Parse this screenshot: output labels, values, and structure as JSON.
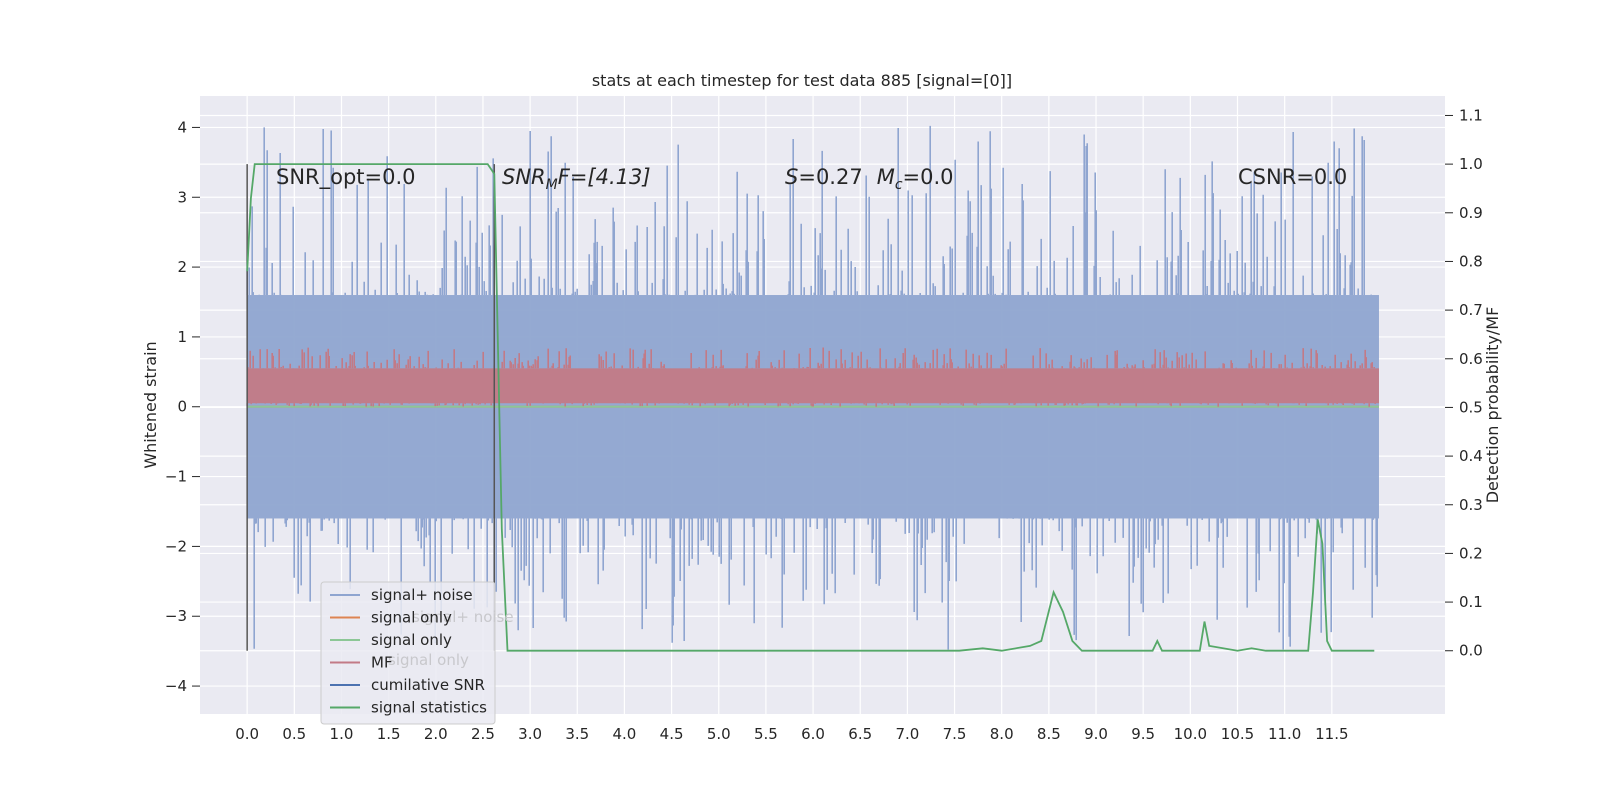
{
  "chart_data": {
    "type": "line",
    "title": "stats at each timestep for test data 885 [signal=[0]]",
    "xlabel": "",
    "ylabel": "Whitened strain",
    "ylabel_right": "Detection probability/MF",
    "xlim": [
      -0.5,
      12.7
    ],
    "ylim": [
      -4.4,
      4.45
    ],
    "ylim_right": [
      -0.13,
      1.14
    ],
    "x_ticks": [
      "0.0",
      "0.5",
      "1.0",
      "1.5",
      "2.0",
      "2.5",
      "3.0",
      "3.5",
      "4.0",
      "4.5",
      "5.0",
      "5.5",
      "6.0",
      "6.5",
      "7.0",
      "7.5",
      "8.0",
      "8.5",
      "9.0",
      "9.5",
      "10.0",
      "10.5",
      "11.0",
      "11.5"
    ],
    "y_ticks": [
      "4",
      "3",
      "2",
      "1",
      "0",
      "−1",
      "−2",
      "−3",
      "−4"
    ],
    "y_ticks_right": [
      "1.1",
      "1.0",
      "0.9",
      "0.8",
      "0.7",
      "0.6",
      "0.5",
      "0.4",
      "0.3",
      "0.2",
      "0.1",
      "0.0"
    ],
    "grid": true,
    "legend_position": "lower-left",
    "annotations": [
      "SNR_opt=0.0",
      "SNR",
      "M",
      "F=[4.13]",
      "S",
      "=0.27",
      "M",
      "c",
      "=0.0",
      "CSNR=0.0"
    ],
    "legend": [
      "signal+ noise",
      "signal only",
      "signal only",
      "MF",
      "cumilative SNR",
      "signal statistics"
    ],
    "legend_ghost_labels": [
      "signal+ noise",
      "signal only"
    ],
    "series": [
      {
        "name": "signal+ noise",
        "axis": "left",
        "color": "#8fa5d0",
        "kind": "noise",
        "x_range": [
          0.0,
          12.0
        ],
        "band_low": -1.6,
        "band_high": 1.6,
        "peak_low": -3.5,
        "peak_high": 4.05
      },
      {
        "name": "signal only",
        "axis": "left",
        "color": "#dd8452",
        "values": [
          [
            0.0,
            0.0
          ],
          [
            12.0,
            0.0
          ]
        ]
      },
      {
        "name": "signal only",
        "axis": "left",
        "color": "#8cc796",
        "values": [
          [
            0.0,
            0.0
          ],
          [
            12.0,
            0.0
          ]
        ]
      },
      {
        "name": "MF",
        "axis": "left",
        "color": "#c27a86",
        "kind": "noise",
        "x_range": [
          0.0,
          12.0
        ],
        "band_low": 0.05,
        "band_high": 0.55,
        "peak_low": 0.0,
        "peak_high": 0.85
      },
      {
        "name": "cumilative SNR",
        "axis": "right",
        "color": "#4c72b0",
        "values": [
          [
            0.0,
            1.0
          ],
          [
            0.0,
            0.0
          ],
          [
            2.62,
            1.0
          ],
          [
            2.62,
            0.0
          ]
        ]
      },
      {
        "name": "signal statistics",
        "axis": "right",
        "color": "#55a868",
        "values": [
          [
            0.0,
            0.78
          ],
          [
            0.04,
            0.93
          ],
          [
            0.08,
            1.0
          ],
          [
            0.15,
            1.0
          ],
          [
            2.55,
            1.0
          ],
          [
            2.62,
            0.98
          ],
          [
            2.7,
            0.25
          ],
          [
            2.76,
            0.0
          ],
          [
            4.0,
            0.0
          ],
          [
            7.4,
            0.0
          ],
          [
            7.55,
            0.0
          ],
          [
            7.8,
            0.005
          ],
          [
            8.0,
            0.0
          ],
          [
            8.3,
            0.01
          ],
          [
            8.42,
            0.02
          ],
          [
            8.55,
            0.12
          ],
          [
            8.65,
            0.08
          ],
          [
            8.75,
            0.02
          ],
          [
            8.85,
            0.0
          ],
          [
            9.6,
            0.0
          ],
          [
            9.65,
            0.02
          ],
          [
            9.7,
            0.0
          ],
          [
            10.0,
            0.0
          ],
          [
            10.1,
            0.0
          ],
          [
            10.15,
            0.06
          ],
          [
            10.2,
            0.01
          ],
          [
            10.5,
            0.0
          ],
          [
            10.65,
            0.005
          ],
          [
            10.8,
            0.0
          ],
          [
            11.25,
            0.0
          ],
          [
            11.3,
            0.12
          ],
          [
            11.35,
            0.27
          ],
          [
            11.4,
            0.22
          ],
          [
            11.45,
            0.02
          ],
          [
            11.5,
            0.0
          ],
          [
            11.95,
            0.0
          ]
        ]
      }
    ]
  }
}
